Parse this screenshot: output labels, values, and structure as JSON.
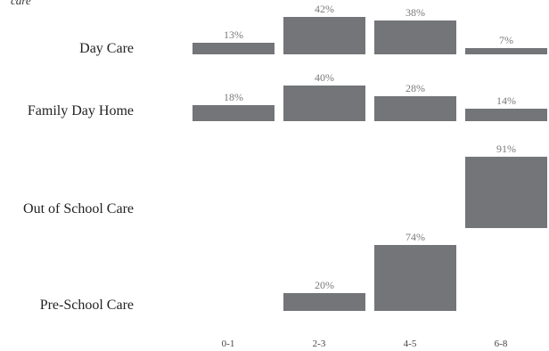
{
  "chart_data": {
    "type": "bar",
    "title": "care",
    "categories": [
      "0-1",
      "2-3",
      "4-5",
      "6-8"
    ],
    "rows": [
      {
        "label": "Day Care",
        "values": [
          13,
          42,
          38,
          7
        ]
      },
      {
        "label": "Family Day Home",
        "values": [
          18,
          40,
          28,
          14
        ]
      },
      {
        "label": "Out of School Care",
        "values": [
          null,
          null,
          null,
          91
        ]
      },
      {
        "label": "Pre-School Care",
        "values": [
          null,
          20,
          74,
          null
        ]
      }
    ],
    "value_suffix": "%",
    "bar_color": "#737578",
    "label_color": "#7a7a7a",
    "ylim": [
      0,
      100
    ]
  }
}
